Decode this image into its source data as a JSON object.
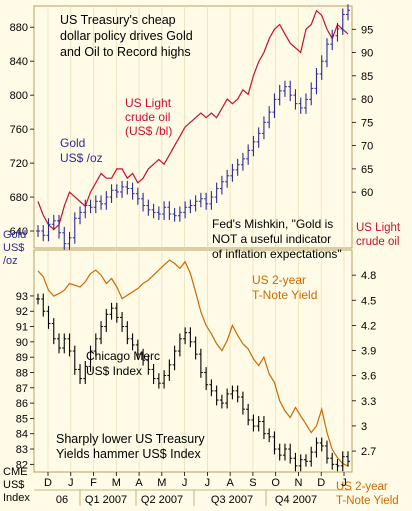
{
  "chart_data": [
    {
      "type": "line",
      "panel": "top",
      "title": "US Treasury's cheap dollar policy drives Gold and Oil to Record highs",
      "ylim_left": [
        620,
        905
      ],
      "ylim_right": [
        48,
        100
      ],
      "left_ticks": [
        640,
        680,
        720,
        760,
        800,
        840,
        880
      ],
      "right_ticks": [
        60,
        65,
        70,
        75,
        80,
        85,
        90,
        95
      ],
      "series": [
        {
          "name": "Gold",
          "kind": "ohlc",
          "axis": "left",
          "label_lines": [
            "Gold",
            "US$ /oz"
          ],
          "axis_label_lines": [
            "Gold",
            "US$",
            "/oz"
          ],
          "color": "#2b2b9a",
          "values": [
            640,
            635,
            648,
            652,
            638,
            625,
            632,
            655,
            662,
            670,
            668,
            675,
            672,
            680,
            688,
            686,
            692,
            690,
            684,
            678,
            670,
            665,
            662,
            660,
            668,
            660,
            658,
            662,
            668,
            670,
            675,
            678,
            672,
            680,
            690,
            698,
            705,
            712,
            718,
            725,
            735,
            745,
            755,
            768,
            780,
            795,
            805,
            810,
            800,
            790,
            785,
            795,
            808,
            825,
            840,
            860,
            870,
            878,
            895,
            900
          ]
        },
        {
          "name": "US Light crude oil",
          "kind": "line",
          "axis": "right",
          "label_lines": [
            "US Light",
            "crude oil",
            "(US$ /bl)"
          ],
          "axis_label_lines": [
            "US Light",
            "crude oil"
          ],
          "color": "#c8102e",
          "values": [
            58,
            55,
            53,
            52,
            53,
            57,
            60,
            59,
            58,
            57,
            60,
            62,
            64,
            63,
            63,
            65,
            65,
            63,
            64,
            62,
            63,
            65,
            66,
            67,
            66,
            68,
            70,
            72,
            74,
            75,
            76,
            77,
            76,
            77,
            76,
            78,
            80,
            79,
            80,
            82,
            81,
            85,
            88,
            90,
            93,
            95,
            96,
            94,
            92,
            91,
            90,
            95,
            96,
            99,
            98,
            95,
            93,
            96,
            95,
            94
          ]
        }
      ],
      "annotations": [
        {
          "text_lines": [
            "Fed's Mishkin, \"Gold is",
            "NOT a useful indicator",
            "of inflation expectations\""
          ]
        }
      ]
    },
    {
      "type": "line",
      "panel": "bottom",
      "ylim_left": [
        81.5,
        96
      ],
      "ylim_right": [
        2.45,
        5.1
      ],
      "left_ticks": [
        82,
        83,
        84,
        85,
        86,
        87,
        88,
        89,
        90,
        91,
        92,
        93
      ],
      "right_ticks": [
        2.7,
        3.0,
        3.3,
        3.6,
        3.9,
        4.2,
        4.5,
        4.8
      ],
      "right_tick_labels": [
        "2.7",
        "3",
        "3.3",
        "3.6",
        "3.9",
        "4.2",
        "4.5",
        "4.8"
      ],
      "series": [
        {
          "name": "Chicago Merc US$ Index",
          "kind": "ohlc",
          "axis": "left",
          "label_lines": [
            "Chicago Merc",
            "US$ Index"
          ],
          "axis_label_lines": [
            "CME",
            "US$",
            "Index"
          ],
          "color": "#000000",
          "values": [
            92.8,
            92.0,
            91.2,
            90.2,
            89.6,
            90.2,
            89.4,
            88.2,
            87.6,
            88.4,
            89.4,
            90.2,
            91.0,
            91.8,
            92.2,
            91.6,
            91.0,
            90.2,
            89.8,
            89.2,
            88.8,
            88.2,
            87.6,
            87.3,
            87.8,
            88.5,
            89.4,
            90.2,
            90.6,
            90.0,
            89.2,
            88.0,
            87.2,
            86.8,
            86.2,
            86.0,
            86.6,
            86.8,
            86.4,
            85.6,
            84.9,
            84.5,
            84.8,
            84.0,
            83.8,
            83.0,
            82.6,
            83.0,
            82.4,
            81.9,
            82.3,
            82.2,
            82.8,
            83.4,
            83.2,
            82.4,
            82.0,
            81.9,
            82.5,
            82.2
          ]
        },
        {
          "name": "US 2-year T-Note Yield",
          "kind": "line",
          "axis": "right",
          "label_lines": [
            "US 2-year",
            "T-Note Yield"
          ],
          "axis_label_lines": [
            "US 2-year",
            "T-Note Yield"
          ],
          "color": "#cc6a00",
          "values": [
            4.85,
            4.78,
            4.62,
            4.55,
            4.58,
            4.62,
            4.7,
            4.68,
            4.66,
            4.72,
            4.82,
            4.86,
            4.8,
            4.7,
            4.76,
            4.66,
            4.52,
            4.56,
            4.6,
            4.64,
            4.7,
            4.74,
            4.8,
            4.86,
            4.92,
            4.98,
            4.94,
            4.88,
            4.96,
            4.82,
            4.6,
            4.36,
            4.2,
            4.1,
            3.98,
            3.9,
            4.02,
            4.2,
            4.08,
            3.98,
            3.92,
            3.8,
            3.72,
            3.82,
            3.62,
            3.52,
            3.3,
            3.18,
            3.1,
            3.22,
            3.12,
            3.02,
            2.92,
            3.0,
            3.2,
            2.92,
            2.72,
            2.62,
            2.55,
            2.52
          ]
        }
      ],
      "annotations": [
        {
          "text_lines": [
            "Sharply lower US Treasury",
            "Yields hammer US$ Index"
          ]
        }
      ]
    }
  ],
  "x_axis": {
    "month_ticks": [
      "D",
      "J",
      "F",
      "M",
      "A",
      "M",
      "J",
      "J",
      "A",
      "S",
      "O",
      "N",
      "D",
      "J"
    ],
    "period_labels": [
      "06",
      "Q1 2007",
      "Q2 2007",
      "Q3 2007",
      "Q4 2007"
    ]
  },
  "colors": {
    "background": "#fffbe6",
    "gold": "#2b2b9a",
    "oil": "#c8102e",
    "usd": "#000000",
    "yield": "#cc6a00",
    "text_blue": "#2b2b9a"
  }
}
